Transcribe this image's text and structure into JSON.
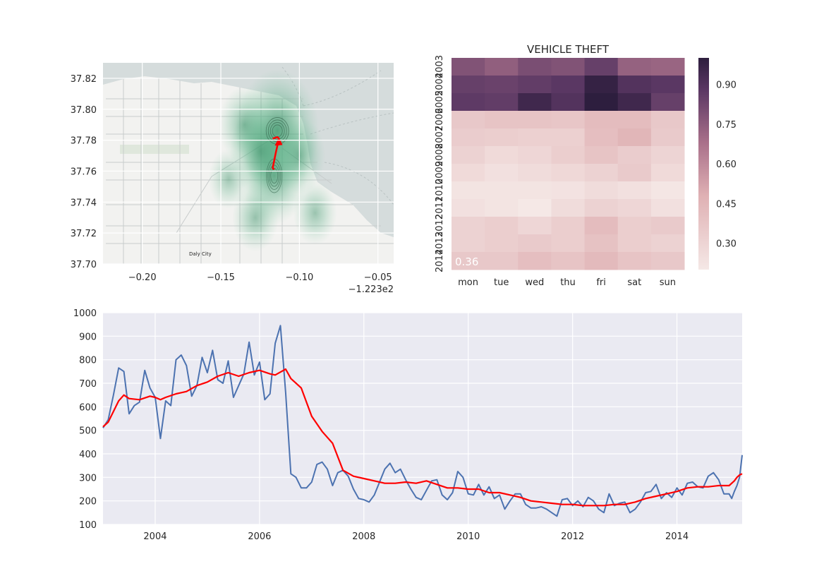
{
  "colors": {
    "axes_bg": "#eaeaf2",
    "grid": "#ffffff",
    "series_blue": "#4c72b0",
    "series_red": "#ff0000",
    "map_water": "#d5dcdc",
    "map_land": "#f2f2f0",
    "density_green": "#3a9a6e",
    "heat_low": "#f5e8e6",
    "heat_high": "#2d1e3e"
  },
  "chart_data": [
    {
      "type": "scatter",
      "subtype": "map-density",
      "title": "",
      "xlim": [
        -0.225,
        -0.04
      ],
      "ylim": [
        37.7,
        37.83
      ],
      "x_ticks": [
        -0.2,
        -0.15,
        -0.1,
        -0.05
      ],
      "x_tick_labels": [
        "−0.20",
        "−0.15",
        "−0.10",
        "−0.05"
      ],
      "x_offset_label": "−1.223e2",
      "y_ticks": [
        37.7,
        37.72,
        37.74,
        37.76,
        37.78,
        37.8,
        37.82
      ],
      "y_tick_labels": [
        "37.70",
        "37.72",
        "37.74",
        "37.76",
        "37.78",
        "37.80",
        "37.82"
      ],
      "grid": true,
      "map_labels": [
        "Daly City"
      ],
      "density_centers": [
        {
          "x": -0.114,
          "y": 37.786,
          "weight": 1.0
        },
        {
          "x": -0.116,
          "y": 37.757,
          "weight": 0.7
        },
        {
          "x": -0.125,
          "y": 37.773,
          "weight": 0.6
        },
        {
          "x": -0.135,
          "y": 37.79,
          "weight": 0.45
        },
        {
          "x": -0.1,
          "y": 37.77,
          "weight": 0.45
        },
        {
          "x": -0.128,
          "y": 37.73,
          "weight": 0.35
        },
        {
          "x": -0.09,
          "y": 37.733,
          "weight": 0.3
        },
        {
          "x": -0.145,
          "y": 37.755,
          "weight": 0.25
        }
      ],
      "arrow": {
        "color": "#ff0000",
        "path": [
          [
            -0.116,
            37.761
          ],
          [
            -0.117,
            37.762
          ],
          [
            -0.115,
            37.772
          ],
          [
            -0.113,
            37.781
          ],
          [
            -0.114,
            37.782
          ],
          [
            -0.117,
            37.781
          ]
        ]
      }
    },
    {
      "type": "heatmap",
      "title": "VEHICLE THEFT",
      "x_labels": [
        "mon",
        "tue",
        "wed",
        "thu",
        "fri",
        "sat",
        "sun"
      ],
      "y_labels": [
        "2003",
        "2004",
        "2005",
        "2006",
        "2007",
        "2008",
        "2009",
        "2010",
        "2011",
        "2012",
        "2013",
        "2014"
      ],
      "values": [
        [
          0.78,
          0.74,
          0.8,
          0.78,
          0.85,
          0.73,
          0.72
        ],
        [
          0.85,
          0.84,
          0.86,
          0.88,
          0.98,
          0.9,
          0.88
        ],
        [
          0.87,
          0.86,
          0.95,
          0.9,
          1.0,
          0.95,
          0.85
        ],
        [
          0.36,
          0.38,
          0.38,
          0.37,
          0.42,
          0.42,
          0.36
        ],
        [
          0.34,
          0.33,
          0.32,
          0.32,
          0.41,
          0.45,
          0.35
        ],
        [
          0.31,
          0.27,
          0.29,
          0.33,
          0.38,
          0.34,
          0.3
        ],
        [
          0.27,
          0.24,
          0.26,
          0.28,
          0.31,
          0.35,
          0.27
        ],
        [
          0.22,
          0.22,
          0.22,
          0.23,
          0.26,
          0.24,
          0.21
        ],
        [
          0.24,
          0.22,
          0.19,
          0.26,
          0.31,
          0.29,
          0.24
        ],
        [
          0.31,
          0.33,
          0.29,
          0.33,
          0.42,
          0.33,
          0.35
        ],
        [
          0.31,
          0.33,
          0.35,
          0.33,
          0.39,
          0.33,
          0.31
        ],
        [
          0.36,
          0.36,
          0.41,
          0.38,
          0.43,
          0.38,
          0.36
        ]
      ],
      "annotation": "0.36",
      "colorbar_range": [
        0.2,
        1.0
      ],
      "colorbar_ticks": [
        0.3,
        0.45,
        0.6,
        0.75,
        0.9
      ],
      "colorbar_tick_labels": [
        "0.30",
        "0.45",
        "0.60",
        "0.75",
        "0.90"
      ]
    },
    {
      "type": "line",
      "title": "",
      "xlabel": "",
      "ylabel": "",
      "xlim": [
        2003.0,
        2015.25
      ],
      "ylim": [
        100,
        1000
      ],
      "x_ticks": [
        2004,
        2006,
        2008,
        2010,
        2012,
        2014
      ],
      "x_tick_labels": [
        "2004",
        "2006",
        "2008",
        "2010",
        "2012",
        "2014"
      ],
      "y_ticks": [
        100,
        200,
        300,
        400,
        500,
        600,
        700,
        800,
        900,
        1000
      ],
      "y_tick_labels": [
        "100",
        "200",
        "300",
        "400",
        "500",
        "600",
        "700",
        "800",
        "900",
        "1000"
      ],
      "grid": true,
      "series": [
        {
          "color": "#4c72b0",
          "points": [
            [
              2003.0,
              510
            ],
            [
              2003.1,
              545
            ],
            [
              2003.2,
              650
            ],
            [
              2003.3,
              765
            ],
            [
              2003.4,
              750
            ],
            [
              2003.5,
              570
            ],
            [
              2003.6,
              605
            ],
            [
              2003.7,
              620
            ],
            [
              2003.8,
              755
            ],
            [
              2003.9,
              680
            ],
            [
              2004.0,
              640
            ],
            [
              2004.1,
              465
            ],
            [
              2004.2,
              625
            ],
            [
              2004.3,
              605
            ],
            [
              2004.4,
              800
            ],
            [
              2004.5,
              820
            ],
            [
              2004.6,
              775
            ],
            [
              2004.7,
              645
            ],
            [
              2004.8,
              690
            ],
            [
              2004.9,
              810
            ],
            [
              2005.0,
              745
            ],
            [
              2005.1,
              840
            ],
            [
              2005.2,
              715
            ],
            [
              2005.3,
              700
            ],
            [
              2005.4,
              795
            ],
            [
              2005.5,
              640
            ],
            [
              2005.6,
              690
            ],
            [
              2005.7,
              740
            ],
            [
              2005.8,
              875
            ],
            [
              2005.9,
              735
            ],
            [
              2006.0,
              790
            ],
            [
              2006.1,
              630
            ],
            [
              2006.2,
              655
            ],
            [
              2006.3,
              870
            ],
            [
              2006.4,
              945
            ],
            [
              2006.5,
              660
            ],
            [
              2006.6,
              315
            ],
            [
              2006.7,
              300
            ],
            [
              2006.8,
              255
            ],
            [
              2006.9,
              255
            ],
            [
              2007.0,
              280
            ],
            [
              2007.1,
              355
            ],
            [
              2007.2,
              365
            ],
            [
              2007.3,
              335
            ],
            [
              2007.4,
              265
            ],
            [
              2007.5,
              320
            ],
            [
              2007.6,
              330
            ],
            [
              2007.7,
              305
            ],
            [
              2007.8,
              250
            ],
            [
              2007.9,
              210
            ],
            [
              2008.0,
              205
            ],
            [
              2008.1,
              195
            ],
            [
              2008.2,
              225
            ],
            [
              2008.3,
              280
            ],
            [
              2008.4,
              335
            ],
            [
              2008.5,
              360
            ],
            [
              2008.6,
              320
            ],
            [
              2008.7,
              335
            ],
            [
              2008.8,
              290
            ],
            [
              2008.9,
              250
            ],
            [
              2009.0,
              215
            ],
            [
              2009.1,
              205
            ],
            [
              2009.2,
              245
            ],
            [
              2009.3,
              285
            ],
            [
              2009.4,
              290
            ],
            [
              2009.5,
              225
            ],
            [
              2009.6,
              205
            ],
            [
              2009.7,
              235
            ],
            [
              2009.8,
              325
            ],
            [
              2009.9,
              300
            ],
            [
              2010.0,
              230
            ],
            [
              2010.1,
              225
            ],
            [
              2010.2,
              270
            ],
            [
              2010.3,
              225
            ],
            [
              2010.4,
              260
            ],
            [
              2010.5,
              210
            ],
            [
              2010.6,
              225
            ],
            [
              2010.7,
              165
            ],
            [
              2010.8,
              200
            ],
            [
              2010.9,
              230
            ],
            [
              2011.0,
              230
            ],
            [
              2011.1,
              185
            ],
            [
              2011.2,
              170
            ],
            [
              2011.3,
              170
            ],
            [
              2011.4,
              175
            ],
            [
              2011.5,
              165
            ],
            [
              2011.6,
              150
            ],
            [
              2011.7,
              135
            ],
            [
              2011.8,
              205
            ],
            [
              2011.9,
              210
            ],
            [
              2012.0,
              180
            ],
            [
              2012.1,
              200
            ],
            [
              2012.2,
              175
            ],
            [
              2012.3,
              215
            ],
            [
              2012.4,
              200
            ],
            [
              2012.5,
              165
            ],
            [
              2012.6,
              150
            ],
            [
              2012.7,
              230
            ],
            [
              2012.8,
              180
            ],
            [
              2012.9,
              190
            ],
            [
              2013.0,
              195
            ],
            [
              2013.1,
              150
            ],
            [
              2013.2,
              165
            ],
            [
              2013.3,
              195
            ],
            [
              2013.4,
              235
            ],
            [
              2013.5,
              240
            ],
            [
              2013.6,
              270
            ],
            [
              2013.7,
              210
            ],
            [
              2013.8,
              235
            ],
            [
              2013.9,
              215
            ],
            [
              2014.0,
              255
            ],
            [
              2014.1,
              225
            ],
            [
              2014.2,
              275
            ],
            [
              2014.3,
              280
            ],
            [
              2014.4,
              260
            ],
            [
              2014.5,
              255
            ],
            [
              2014.6,
              305
            ],
            [
              2014.7,
              320
            ],
            [
              2014.8,
              290
            ],
            [
              2014.9,
              230
            ],
            [
              2015.0,
              230
            ],
            [
              2015.05,
              210
            ],
            [
              2015.1,
              240
            ],
            [
              2015.15,
              265
            ],
            [
              2015.2,
              300
            ],
            [
              2015.25,
              395
            ]
          ]
        },
        {
          "color": "#ff0000",
          "points": [
            [
              2003.0,
              515
            ],
            [
              2003.1,
              535
            ],
            [
              2003.2,
              580
            ],
            [
              2003.3,
              625
            ],
            [
              2003.4,
              650
            ],
            [
              2003.5,
              635
            ],
            [
              2003.7,
              630
            ],
            [
              2003.9,
              645
            ],
            [
              2004.0,
              640
            ],
            [
              2004.1,
              630
            ],
            [
              2004.2,
              640
            ],
            [
              2004.4,
              655
            ],
            [
              2004.6,
              665
            ],
            [
              2004.8,
              690
            ],
            [
              2005.0,
              705
            ],
            [
              2005.2,
              730
            ],
            [
              2005.4,
              745
            ],
            [
              2005.6,
              730
            ],
            [
              2005.8,
              745
            ],
            [
              2006.0,
              755
            ],
            [
              2006.2,
              740
            ],
            [
              2006.3,
              735
            ],
            [
              2006.5,
              760
            ],
            [
              2006.6,
              720
            ],
            [
              2006.8,
              680
            ],
            [
              2006.9,
              620
            ],
            [
              2007.0,
              560
            ],
            [
              2007.2,
              495
            ],
            [
              2007.4,
              445
            ],
            [
              2007.6,
              330
            ],
            [
              2007.8,
              305
            ],
            [
              2008.0,
              295
            ],
            [
              2008.2,
              285
            ],
            [
              2008.4,
              275
            ],
            [
              2008.6,
              275
            ],
            [
              2008.8,
              280
            ],
            [
              2009.0,
              275
            ],
            [
              2009.2,
              285
            ],
            [
              2009.4,
              270
            ],
            [
              2009.6,
              255
            ],
            [
              2009.8,
              255
            ],
            [
              2010.0,
              250
            ],
            [
              2010.2,
              250
            ],
            [
              2010.4,
              235
            ],
            [
              2010.6,
              235
            ],
            [
              2010.8,
              225
            ],
            [
              2011.0,
              215
            ],
            [
              2011.2,
              200
            ],
            [
              2011.4,
              195
            ],
            [
              2011.6,
              190
            ],
            [
              2011.8,
              185
            ],
            [
              2012.0,
              185
            ],
            [
              2012.2,
              180
            ],
            [
              2012.4,
              180
            ],
            [
              2012.6,
              180
            ],
            [
              2012.8,
              185
            ],
            [
              2013.0,
              185
            ],
            [
              2013.2,
              195
            ],
            [
              2013.4,
              210
            ],
            [
              2013.6,
              220
            ],
            [
              2013.8,
              230
            ],
            [
              2014.0,
              240
            ],
            [
              2014.2,
              255
            ],
            [
              2014.4,
              260
            ],
            [
              2014.6,
              260
            ],
            [
              2014.8,
              265
            ],
            [
              2015.0,
              265
            ],
            [
              2015.1,
              285
            ],
            [
              2015.15,
              300
            ],
            [
              2015.2,
              310
            ],
            [
              2015.25,
              315
            ]
          ]
        }
      ]
    }
  ]
}
